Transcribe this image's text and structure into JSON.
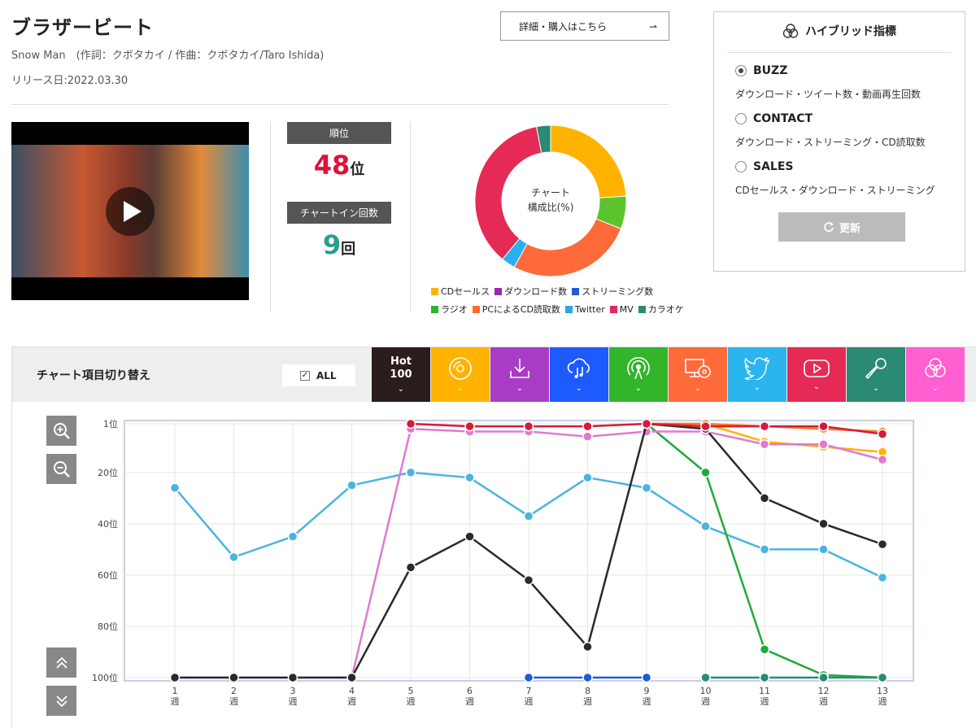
{
  "song": {
    "title": "ブラザービート",
    "credits": "Snow Man　(作詞：クボタカイ / 作曲：クボタカイ/Taro Ishida)",
    "release": "リリース日:2022.03.30",
    "detail_button": "詳細・購入はこちら",
    "detail_arrow": "⇀"
  },
  "stats": {
    "rank_label": "順位",
    "rank_value": "48",
    "rank_suffix": "位",
    "rank_color": "#e0103a",
    "chartin_label": "チャートイン回数",
    "chartin_value": "9",
    "chartin_suffix": "回",
    "chartin_color": "#2a9d8f"
  },
  "composition": {
    "center_line1": "チャート",
    "center_line2": "構成比(%)",
    "legend_row1": [
      {
        "label": "CDセールス",
        "color": "#ffb300"
      },
      {
        "label": "ダウンロード数",
        "color": "#9c27b0"
      },
      {
        "label": "ストリーミング数",
        "color": "#1e5bd8"
      }
    ],
    "legend_row2": [
      {
        "label": "ラジオ",
        "color": "#2bb52b"
      },
      {
        "label": "PCによるCD読取数",
        "color": "#ff6a2b"
      },
      {
        "label": "Twitter",
        "color": "#2aa8e0"
      },
      {
        "label": "MV",
        "color": "#e5285a"
      },
      {
        "label": "カラオケ",
        "color": "#2a8a72"
      }
    ],
    "slices": [
      {
        "name": "CDセールス",
        "value": 24,
        "color": "#ffb300"
      },
      {
        "name": "ラジオ",
        "value": 7,
        "color": "#5bc42d"
      },
      {
        "name": "PCによるCD読取数",
        "value": 27,
        "color": "#ff6a3a"
      },
      {
        "name": "Twitter",
        "value": 3,
        "color": "#2ab0f0"
      },
      {
        "name": "MV",
        "value": 36,
        "color": "#e52a55"
      },
      {
        "name": "カラオケ",
        "value": 3,
        "color": "#2a8a72"
      }
    ]
  },
  "hybrid": {
    "title": "ハイブリッド指標",
    "options": [
      {
        "label": "BUZZ",
        "desc": "ダウンロード・ツイート数・動画再生回数",
        "selected": true
      },
      {
        "label": "CONTACT",
        "desc": "ダウンロード・ストリーミング・CD読取数",
        "selected": false
      },
      {
        "label": "SALES",
        "desc": "CDセールス・ダウンロード・ストリーミング",
        "selected": false
      }
    ],
    "refresh_label": "更新"
  },
  "chart_switch": {
    "caption": "チャート項目切り替え",
    "all_label": "ALL",
    "hot_line1": "Hot",
    "hot_line2": "100",
    "tiles": [
      {
        "icon": "hot100-icon",
        "color": "#2a1d1b"
      },
      {
        "icon": "cd-icon",
        "color": "#ffb300"
      },
      {
        "icon": "download-icon",
        "color": "#a93cc4"
      },
      {
        "icon": "streaming-icon",
        "color": "#1e5bff"
      },
      {
        "icon": "radio-icon",
        "color": "#33b52b"
      },
      {
        "icon": "pc-cd-icon",
        "color": "#ff6a3a"
      },
      {
        "icon": "twitter-icon",
        "color": "#2bb5ee"
      },
      {
        "icon": "youtube-icon",
        "color": "#e52a55"
      },
      {
        "icon": "microphone-icon",
        "color": "#2a8a72"
      },
      {
        "icon": "hybrid-icon",
        "color": "#ff5fd0"
      }
    ]
  },
  "chart_data": {
    "type": "line",
    "x": [
      "1\n週",
      "2\n週",
      "3\n週",
      "4\n週",
      "5\n週",
      "6\n週",
      "7\n週",
      "8\n週",
      "9\n週",
      "10\n週",
      "11\n週",
      "12\n週",
      "13\n週"
    ],
    "y_ticks": [
      "1位",
      "20位",
      "40位",
      "60位",
      "80位",
      "100位"
    ],
    "y_tick_values": [
      1,
      20,
      40,
      60,
      80,
      100
    ],
    "ylim": [
      1,
      100
    ],
    "y_reversed": true,
    "series": [
      {
        "key": "twitter",
        "color": "#4ab4e0",
        "values": [
          26,
          53,
          45,
          25,
          20,
          22,
          37,
          22,
          26,
          41,
          50,
          50,
          61
        ]
      },
      {
        "key": "radio",
        "color": "#1faa3d",
        "values": [
          null,
          null,
          null,
          null,
          null,
          null,
          null,
          null,
          1,
          20,
          89,
          99,
          100
        ]
      },
      {
        "key": "karaoke",
        "color": "#2a8a72",
        "values": [
          null,
          null,
          null,
          null,
          null,
          null,
          null,
          null,
          null,
          100,
          100,
          100,
          100
        ]
      },
      {
        "key": "streaming",
        "color": "#1e5bd8",
        "values": [
          null,
          null,
          null,
          null,
          null,
          null,
          100,
          100,
          100,
          null,
          null,
          null,
          null
        ]
      },
      {
        "key": "cd",
        "color": "#ffb300",
        "values": [
          null,
          null,
          null,
          null,
          null,
          null,
          null,
          null,
          1,
          1,
          8,
          10,
          12
        ]
      },
      {
        "key": "mv-pink",
        "color": "#e07ad0",
        "values": [
          100,
          100,
          100,
          100,
          3,
          4,
          4,
          6,
          4,
          4,
          9,
          9,
          15
        ]
      },
      {
        "key": "hot100",
        "color": "#2a2a2a",
        "values": [
          100,
          100,
          100,
          100,
          57,
          45,
          62,
          88,
          1,
          3,
          30,
          40,
          48
        ]
      },
      {
        "key": "pc-cd",
        "color": "#ff7a1a",
        "values": [
          null,
          null,
          null,
          null,
          null,
          null,
          null,
          null,
          1,
          1,
          2,
          3,
          4
        ]
      },
      {
        "key": "mv",
        "color": "#d81a3a",
        "values": [
          null,
          null,
          null,
          null,
          1,
          2,
          2,
          2,
          1,
          2,
          2,
          2,
          5
        ]
      }
    ]
  }
}
